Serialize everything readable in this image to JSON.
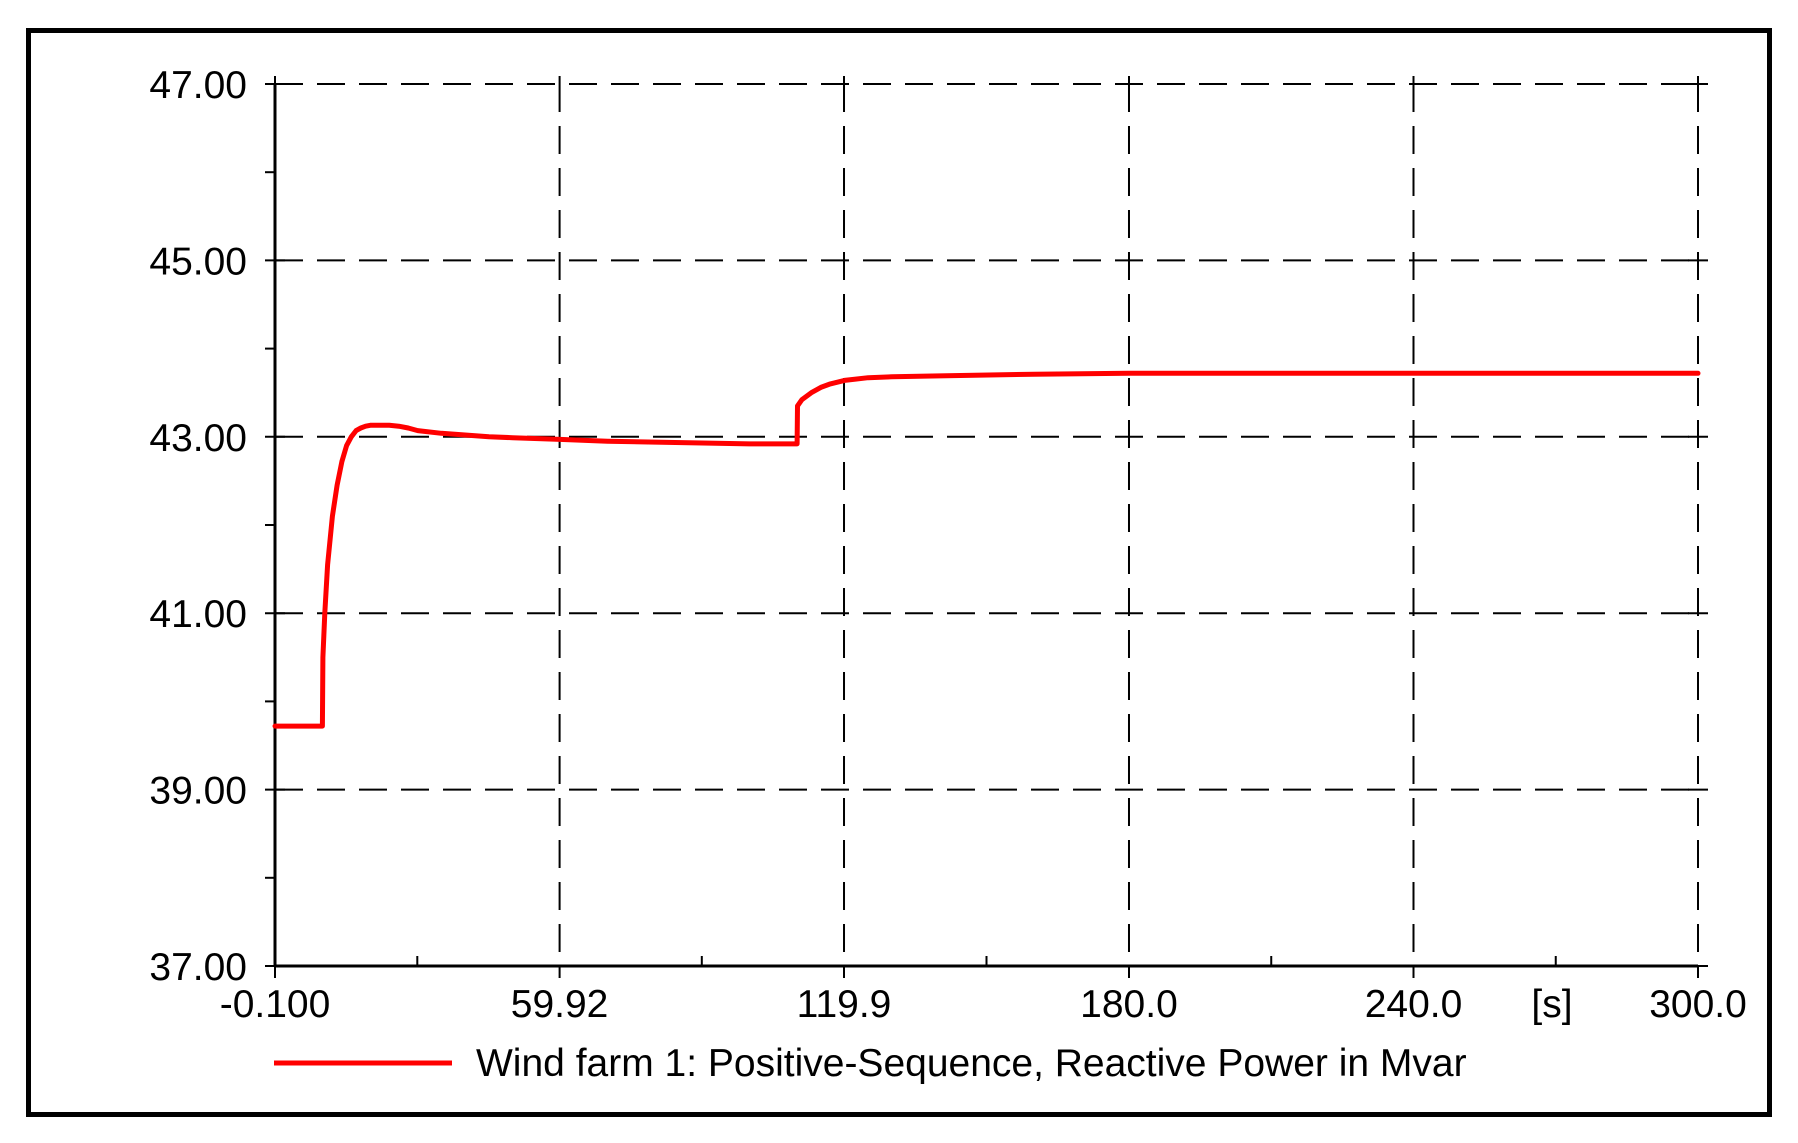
{
  "chart_data": {
    "type": "line",
    "title": "",
    "xlabel": "",
    "ylabel": "",
    "x_unit": "[s]",
    "xlim": [
      -0.1,
      300.0
    ],
    "ylim": [
      37.0,
      47.0
    ],
    "x_tick_values": [
      -0.1,
      59.92,
      119.9,
      180.0,
      240.0,
      300.0
    ],
    "x_tick_labels": [
      "-0.100",
      "59.92",
      "119.9",
      "180.0",
      "240.0",
      "300.0"
    ],
    "y_tick_values": [
      37.0,
      39.0,
      41.0,
      43.0,
      45.0,
      47.0
    ],
    "y_tick_labels": [
      "37.00",
      "39.00",
      "41.00",
      "43.00",
      "45.00",
      "47.00"
    ],
    "grid": true,
    "grid_style": "dashed",
    "legend_position": "bottom",
    "series": [
      {
        "name": "Wind farm 1: Positive-Sequence, Reactive Power in Mvar",
        "color": "#ff0000",
        "x": [
          -0.1,
          9.9,
          10.0,
          10.4,
          11.0,
          12.0,
          13.0,
          14.0,
          15.0,
          16.0,
          17.0,
          18.0,
          19.0,
          20.0,
          22.0,
          24.0,
          26.0,
          28.0,
          30.0,
          35.0,
          40.0,
          45.0,
          50.0,
          60.0,
          70.0,
          80.0,
          90.0,
          100.0,
          110.0,
          110.1,
          111.0,
          113.0,
          115.0,
          117.0,
          120.0,
          125.0,
          130.0,
          140.0,
          160.0,
          180.0,
          200.0,
          240.0,
          300.0
        ],
        "y": [
          39.72,
          39.72,
          40.5,
          41.0,
          41.55,
          42.1,
          42.45,
          42.72,
          42.9,
          43.0,
          43.07,
          43.1,
          43.12,
          43.13,
          43.13,
          43.13,
          43.12,
          43.1,
          43.07,
          43.04,
          43.02,
          43.0,
          42.99,
          42.97,
          42.95,
          42.94,
          42.93,
          42.92,
          42.92,
          43.35,
          43.42,
          43.5,
          43.56,
          43.6,
          43.64,
          43.67,
          43.68,
          43.69,
          43.71,
          43.72,
          43.72,
          43.72,
          43.72
        ]
      }
    ]
  }
}
